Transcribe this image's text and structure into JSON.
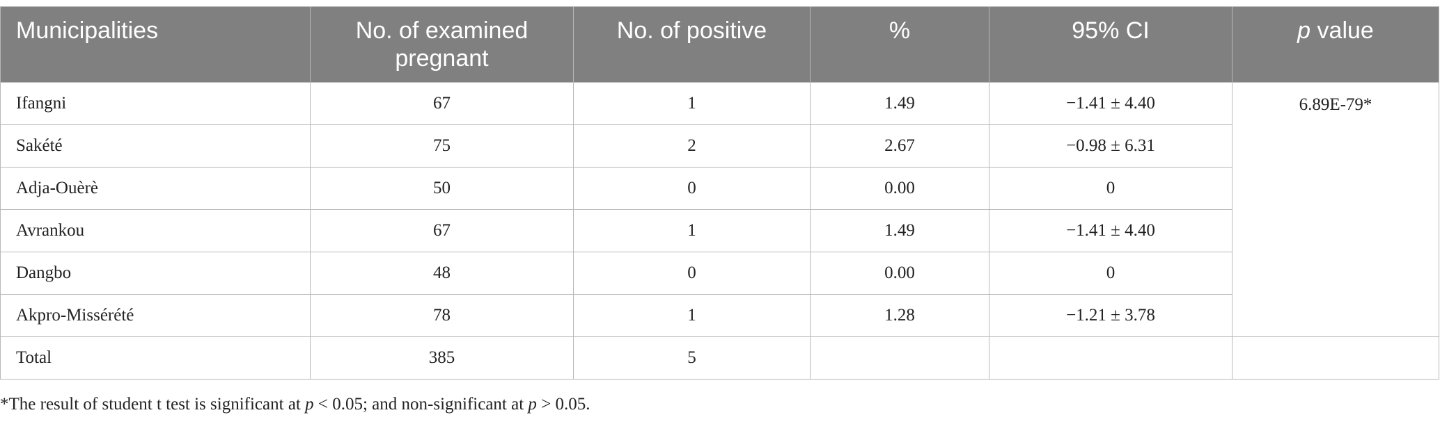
{
  "table": {
    "headers": {
      "municipalities": "Municipalities",
      "examined": "No. of examined pregnant",
      "positive": "No. of positive",
      "percent": "%",
      "ci": "95% CI",
      "p_italic": "p",
      "p_rest": " value"
    },
    "rows": [
      {
        "municipality": "Ifangni",
        "examined": "67",
        "positive": "1",
        "percent": "1.49",
        "ci": "−1.41 ± 4.40"
      },
      {
        "municipality": "Sakété",
        "examined": "75",
        "positive": "2",
        "percent": "2.67",
        "ci": "−0.98 ± 6.31"
      },
      {
        "municipality": "Adja-Ouèrè",
        "examined": "50",
        "positive": "0",
        "percent": "0.00",
        "ci": "0"
      },
      {
        "municipality": "Avrankou",
        "examined": "67",
        "positive": "1",
        "percent": "1.49",
        "ci": "−1.41 ± 4.40"
      },
      {
        "municipality": "Dangbo",
        "examined": "48",
        "positive": "0",
        "percent": "0.00",
        "ci": "0"
      },
      {
        "municipality": "Akpro-Missérété",
        "examined": "78",
        "positive": "1",
        "percent": "1.28",
        "ci": "−1.21 ± 3.78"
      }
    ],
    "p_value": "6.89E-79*",
    "total": {
      "label": "Total",
      "examined": "385",
      "positive": "5",
      "percent": "",
      "ci": "",
      "p_value": ""
    }
  },
  "footnote": {
    "part1": "*The result of student t test is significant at ",
    "p1": "p",
    "part2": " < 0.05; and non-significant at ",
    "p2": "p",
    "part3": " > 0.05."
  }
}
